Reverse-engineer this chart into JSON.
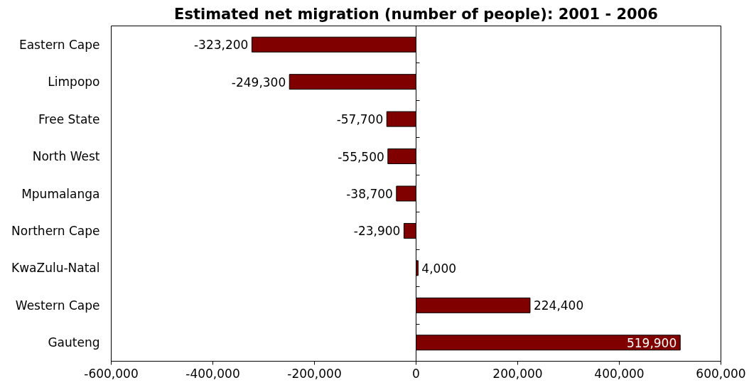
{
  "chart_data": {
    "type": "bar",
    "orientation": "horizontal",
    "title": "Estimated net migration (number of people): 2001 - 2006",
    "categories": [
      "Eastern Cape",
      "Limpopo",
      "Free State",
      "North West",
      "Mpumalanga",
      "Northern Cape",
      "KwaZulu-Natal",
      "Western Cape",
      "Gauteng"
    ],
    "values": [
      -323200,
      -249300,
      -57700,
      -55500,
      -38700,
      -23900,
      4000,
      224400,
      519900
    ],
    "color": "#800000",
    "value_labels": [
      "-323,200",
      "-249,300",
      "-57,700",
      "-55,500",
      "-38,700",
      "-23,900",
      "4,000",
      "224,400",
      "519,900"
    ],
    "xlim": [
      -600000,
      600000
    ],
    "xticks": [
      {
        "value": -600000,
        "label": "-600,000"
      },
      {
        "value": -400000,
        "label": "-400,000"
      },
      {
        "value": -200000,
        "label": "-200,000"
      },
      0,
      {
        "value": 200000,
        "label": "200,000"
      },
      {
        "value": 400000,
        "label": "400,000"
      },
      {
        "value": 600000,
        "label": "600,000"
      }
    ]
  }
}
